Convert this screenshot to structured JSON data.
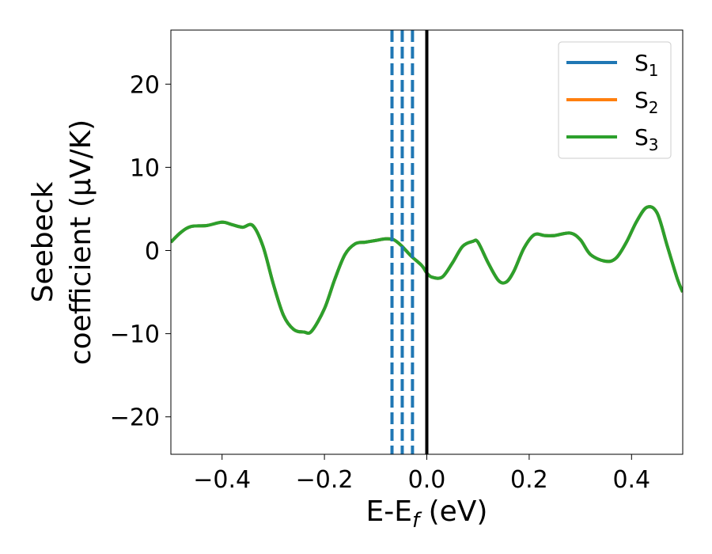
{
  "chart_data": {
    "type": "line",
    "title": "",
    "xlabel": {
      "main": "E-E",
      "sub": "f",
      "suffix": " (eV)"
    },
    "ylabel": {
      "line1": "Seebeck",
      "line2": "coefficient  (μV/K)"
    },
    "xlim": [
      -0.5,
      0.5
    ],
    "ylim": [
      -24.5,
      26.5
    ],
    "xticks": [
      -0.4,
      -0.2,
      0.0,
      0.2,
      0.4
    ],
    "xtick_labels": [
      "−0.4",
      "−0.2",
      "0.0",
      "0.2",
      "0.4"
    ],
    "yticks": [
      -20,
      -10,
      0,
      10,
      20
    ],
    "ytick_labels": [
      "−20",
      "−10",
      "0",
      "10",
      "20"
    ],
    "grid": false,
    "legend_position": "top-right",
    "series": [
      {
        "name": "S1",
        "label_main": "S",
        "label_sub": "1",
        "color": "#1f77b4",
        "x": [
          -0.5,
          -0.48,
          -0.46,
          -0.43,
          -0.4,
          -0.38,
          -0.36,
          -0.34,
          -0.32,
          -0.3,
          -0.28,
          -0.26,
          -0.24,
          -0.225,
          -0.2,
          -0.18,
          -0.16,
          -0.14,
          -0.12,
          -0.1,
          -0.08,
          -0.065,
          -0.05,
          -0.03,
          -0.01,
          0.0,
          0.01,
          0.03,
          0.05,
          0.07,
          0.09,
          0.1,
          0.12,
          0.14,
          0.155,
          0.17,
          0.19,
          0.21,
          0.23,
          0.25,
          0.28,
          0.3,
          0.32,
          0.35,
          0.37,
          0.39,
          0.41,
          0.43,
          0.45,
          0.47,
          0.49,
          0.5
        ],
        "y": [
          1.0,
          2.2,
          2.9,
          3.0,
          3.4,
          3.1,
          2.8,
          3.0,
          0.5,
          -4.0,
          -7.8,
          -9.5,
          -9.8,
          -9.7,
          -7.0,
          -3.5,
          -0.5,
          0.8,
          1.0,
          1.2,
          1.4,
          1.3,
          0.6,
          -0.7,
          -1.8,
          -2.7,
          -3.2,
          -3.2,
          -1.5,
          0.5,
          1.1,
          1.0,
          -1.5,
          -3.6,
          -3.8,
          -2.5,
          0.3,
          1.9,
          1.8,
          1.8,
          2.1,
          1.3,
          -0.5,
          -1.3,
          -0.9,
          1.0,
          3.5,
          5.2,
          4.5,
          0.5,
          -3.5,
          -5.0
        ]
      },
      {
        "name": "S2",
        "label_main": "S",
        "label_sub": "2",
        "color": "#ff7f0e",
        "x": [
          -0.5,
          -0.48,
          -0.46,
          -0.43,
          -0.4,
          -0.38,
          -0.36,
          -0.34,
          -0.32,
          -0.3,
          -0.28,
          -0.26,
          -0.24,
          -0.225,
          -0.2,
          -0.18,
          -0.16,
          -0.14,
          -0.12,
          -0.1,
          -0.08,
          -0.065,
          -0.05,
          -0.03,
          -0.01,
          0.0,
          0.01,
          0.03,
          0.05,
          0.07,
          0.09,
          0.1,
          0.12,
          0.14,
          0.155,
          0.17,
          0.19,
          0.21,
          0.23,
          0.25,
          0.28,
          0.3,
          0.32,
          0.35,
          0.37,
          0.39,
          0.41,
          0.43,
          0.45,
          0.47,
          0.49,
          0.5
        ],
        "y": [
          1.0,
          2.2,
          2.9,
          3.0,
          3.4,
          3.1,
          2.8,
          3.0,
          0.5,
          -4.0,
          -7.8,
          -9.5,
          -9.8,
          -9.7,
          -7.0,
          -3.5,
          -0.5,
          0.8,
          1.0,
          1.2,
          1.4,
          1.3,
          0.6,
          -0.7,
          -1.8,
          -2.7,
          -3.2,
          -3.2,
          -1.5,
          0.5,
          1.1,
          1.0,
          -1.5,
          -3.6,
          -3.8,
          -2.5,
          0.3,
          1.9,
          1.8,
          1.8,
          2.1,
          1.3,
          -0.5,
          -1.3,
          -0.9,
          1.0,
          3.5,
          5.2,
          4.5,
          0.5,
          -3.5,
          -5.0
        ]
      },
      {
        "name": "S3",
        "label_main": "S",
        "label_sub": "3",
        "color": "#2ca02c",
        "x": [
          -0.5,
          -0.48,
          -0.46,
          -0.43,
          -0.4,
          -0.38,
          -0.36,
          -0.34,
          -0.32,
          -0.3,
          -0.28,
          -0.26,
          -0.24,
          -0.225,
          -0.2,
          -0.18,
          -0.16,
          -0.14,
          -0.12,
          -0.1,
          -0.08,
          -0.065,
          -0.05,
          -0.03,
          -0.01,
          0.0,
          0.01,
          0.03,
          0.05,
          0.07,
          0.09,
          0.1,
          0.12,
          0.14,
          0.155,
          0.17,
          0.19,
          0.21,
          0.23,
          0.25,
          0.28,
          0.3,
          0.32,
          0.35,
          0.37,
          0.39,
          0.41,
          0.43,
          0.45,
          0.47,
          0.49,
          0.5
        ],
        "y": [
          1.0,
          2.2,
          2.9,
          3.0,
          3.4,
          3.1,
          2.8,
          3.0,
          0.5,
          -4.0,
          -7.8,
          -9.5,
          -9.8,
          -9.7,
          -7.0,
          -3.5,
          -0.5,
          0.8,
          1.0,
          1.2,
          1.4,
          1.3,
          0.6,
          -0.7,
          -1.8,
          -2.7,
          -3.2,
          -3.2,
          -1.5,
          0.5,
          1.1,
          1.0,
          -1.5,
          -3.6,
          -3.8,
          -2.5,
          0.3,
          1.9,
          1.8,
          1.8,
          2.1,
          1.3,
          -0.5,
          -1.3,
          -0.9,
          1.0,
          3.5,
          5.2,
          4.5,
          0.5,
          -3.5,
          -5.0
        ]
      }
    ],
    "vertical_lines": [
      {
        "x": -0.068,
        "style": "dashed",
        "color": "#1f77b4"
      },
      {
        "x": -0.048,
        "style": "dashed",
        "color": "#1f77b4"
      },
      {
        "x": -0.028,
        "style": "dashed",
        "color": "#1f77b4"
      },
      {
        "x": 0.0,
        "style": "solid",
        "color": "#000000"
      }
    ]
  }
}
